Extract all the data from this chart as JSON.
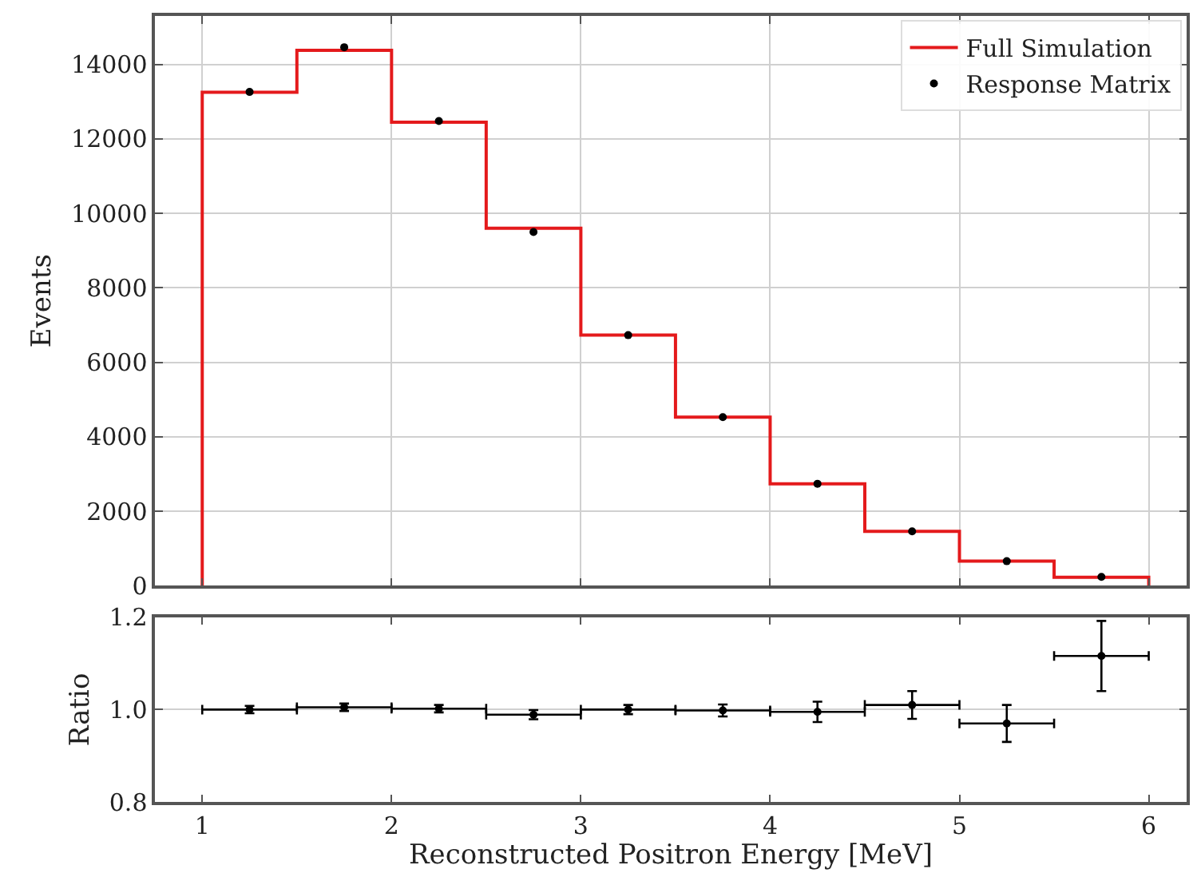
{
  "chart_data": [
    {
      "type": "histogram",
      "ylabel": "Events",
      "bins": [
        1,
        1.5,
        2,
        2.5,
        3,
        3.5,
        4,
        4.5,
        5,
        5.5,
        6
      ],
      "series": [
        {
          "name": "Full Simulation",
          "color": "#e41a1c",
          "values": [
            13250,
            14380,
            12450,
            9600,
            6730,
            4530,
            2740,
            1460,
            660,
            230
          ]
        },
        {
          "type": "scatter",
          "name": "Response Matrix",
          "color": "#000000",
          "x": [
            1.25,
            1.75,
            2.25,
            2.75,
            3.25,
            3.75,
            4.25,
            4.75,
            5.25,
            5.75
          ],
          "values": [
            13260,
            14460,
            12480,
            9500,
            6730,
            4530,
            2740,
            1460,
            660,
            240
          ]
        }
      ],
      "xlim": [
        0.75,
        6.2
      ],
      "xticks": [
        1,
        2,
        3,
        4,
        5,
        6
      ],
      "ylim": [
        0,
        15300
      ],
      "yticks": [
        0,
        2000,
        4000,
        6000,
        8000,
        10000,
        12000,
        14000
      ],
      "grid": true,
      "legend": "top right",
      "tick_labels": "y",
      "marker": "circle"
    },
    {
      "type": "scatter",
      "xlabel": "Reconstructed Positron Energy [MeV]",
      "ylabel": "Ratio",
      "color": "#000000",
      "x": [
        1.25,
        1.75,
        2.25,
        2.75,
        3.25,
        3.75,
        4.25,
        4.75,
        5.25,
        5.75
      ],
      "values": [
        1.0,
        1.005,
        1.002,
        0.989,
        1.0,
        0.998,
        0.995,
        1.01,
        0.97,
        1.116
      ],
      "errors": [
        0.008,
        0.008,
        0.008,
        0.01,
        0.01,
        0.013,
        0.022,
        0.03,
        0.04,
        0.076
      ],
      "xerrors": [
        0.25,
        0.25,
        0.25,
        0.25,
        0.25,
        0.25,
        0.25,
        0.25,
        0.25,
        0.25
      ],
      "xlim": [
        0.75,
        6.2
      ],
      "xticks": [
        1,
        2,
        3,
        4,
        5,
        6
      ],
      "ylim": [
        0.8,
        1.2
      ],
      "yticks": [
        0.8,
        {
          "value": 1,
          "label": "1.0"
        },
        1.2
      ],
      "grid": "y"
    }
  ]
}
